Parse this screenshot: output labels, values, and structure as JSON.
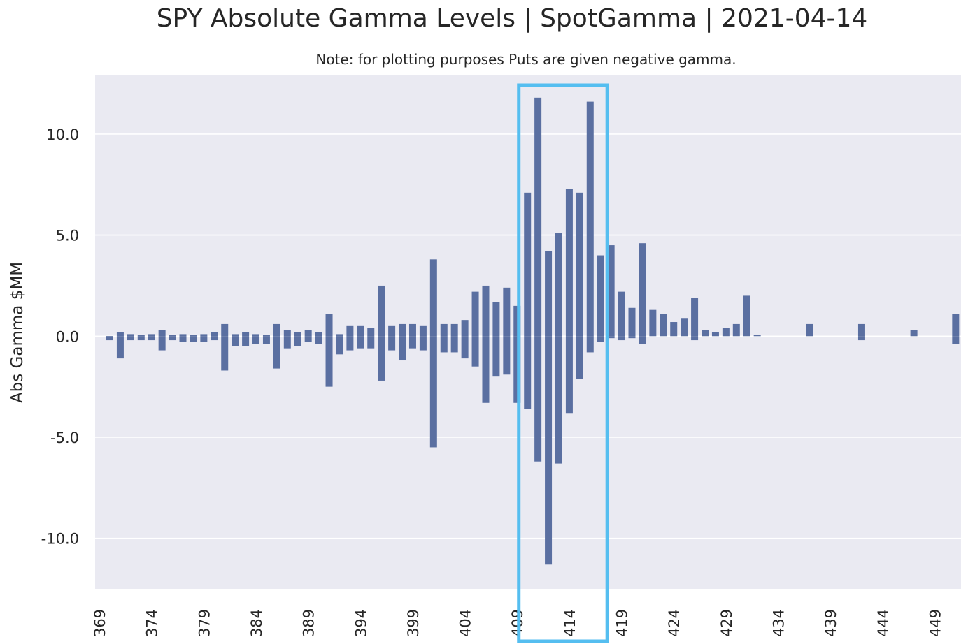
{
  "chart_data": {
    "type": "bar",
    "title": "SPY Absolute Gamma Levels | SpotGamma | 2021-04-14",
    "subtitle": "Note: for plotting purposes Puts are given negative gamma.",
    "xlabel": "",
    "ylabel": "Abs Gamma $MM",
    "ylim": [
      -12.5,
      12.9
    ],
    "yticks": [
      10.0,
      5.0,
      0.0,
      -5.0,
      -10.0
    ],
    "ytick_labels": [
      "10.0",
      "5.0",
      "0.0",
      "-5.0",
      "-10.0"
    ],
    "xticks": [
      "369",
      "374",
      "379",
      "384",
      "389",
      "394",
      "399",
      "404",
      "409",
      "414",
      "419",
      "424",
      "429",
      "434",
      "439",
      "444",
      "449"
    ],
    "grid": true,
    "legend": "none",
    "strikes": [
      369,
      370,
      371,
      372,
      373,
      374,
      375,
      376,
      377,
      378,
      379,
      380,
      381,
      382,
      383,
      384,
      385,
      386,
      387,
      388,
      389,
      390,
      391,
      392,
      393,
      394,
      395,
      396,
      397,
      398,
      399,
      400,
      401,
      402,
      403,
      404,
      405,
      406,
      407,
      408,
      409,
      410,
      411,
      412,
      413,
      414,
      415,
      416,
      417,
      418,
      419,
      420,
      421,
      422,
      423,
      424,
      425,
      426,
      427,
      428,
      429,
      430,
      431,
      432,
      433,
      434,
      435,
      436,
      437,
      438,
      439,
      440,
      441,
      442,
      443,
      444,
      445,
      446,
      447,
      448,
      449,
      450
    ],
    "series": [
      {
        "values": [
          -0.1,
          0.2,
          0.1,
          0.05,
          0.1,
          0.3,
          0.05,
          0.1,
          0.05,
          0.1,
          0.2,
          0.6,
          0.1,
          0.2,
          0.1,
          0.05,
          0.6,
          0.3,
          0.2,
          0.3,
          0.2,
          1.1,
          0.1,
          0.5,
          0.5,
          0.4,
          2.5,
          0.5,
          0.6,
          0.6,
          0.5,
          3.8,
          0.6,
          0.6,
          0.8,
          2.2,
          2.5,
          1.7,
          2.4,
          1.5,
          7.1,
          11.8,
          4.2,
          5.1,
          7.3,
          7.1,
          11.6,
          4.0,
          4.5,
          2.2,
          1.4,
          4.6,
          1.3,
          1.1,
          0.7,
          0.9,
          1.9,
          0.3,
          0.2,
          0.4,
          0.6,
          2.0,
          0.05,
          0,
          0,
          0,
          0,
          0.6,
          0,
          0,
          0,
          0,
          0.6,
          0,
          0,
          0,
          0,
          0.3,
          0,
          0,
          0,
          1.1
        ]
      },
      {
        "values": [
          -0.2,
          -1.1,
          -0.2,
          -0.2,
          -0.2,
          -0.7,
          -0.2,
          -0.3,
          -0.3,
          -0.3,
          -0.2,
          -1.7,
          -0.5,
          -0.5,
          -0.4,
          -0.4,
          -1.6,
          -0.6,
          -0.5,
          -0.3,
          -0.4,
          -2.5,
          -0.9,
          -0.7,
          -0.6,
          -0.6,
          -2.2,
          -0.7,
          -1.2,
          -0.6,
          -0.7,
          -5.5,
          -0.8,
          -0.8,
          -1.1,
          -1.5,
          -3.3,
          -2.0,
          -1.9,
          -3.3,
          -3.6,
          -6.2,
          -11.3,
          -6.3,
          -3.8,
          -2.1,
          -0.8,
          -0.3,
          -0.1,
          -0.2,
          -0.1,
          -0.4,
          0,
          0,
          0,
          0,
          -0.2,
          0,
          0,
          0,
          0,
          0,
          0,
          0,
          0,
          0,
          0,
          0,
          0,
          0,
          0,
          0,
          -0.2,
          0,
          0,
          0,
          0,
          0,
          0,
          0,
          0,
          -0.4
        ]
      }
    ],
    "highlight": {
      "from": 408.5,
      "to": 416.5,
      "color": "#55BEF0"
    },
    "colors": {
      "bar": "#5A6FA1",
      "background": "#EAEAF2",
      "grid": "#FFFFFF",
      "highlight": "#55BEF0"
    }
  }
}
